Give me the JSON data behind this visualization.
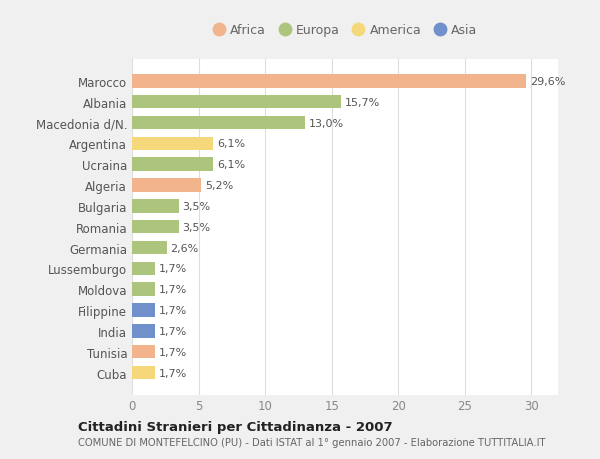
{
  "countries": [
    "Marocco",
    "Albania",
    "Macedonia d/N.",
    "Argentina",
    "Ucraina",
    "Algeria",
    "Bulgaria",
    "Romania",
    "Germania",
    "Lussemburgo",
    "Moldova",
    "Filippine",
    "India",
    "Tunisia",
    "Cuba"
  ],
  "values": [
    29.6,
    15.7,
    13.0,
    6.1,
    6.1,
    5.2,
    3.5,
    3.5,
    2.6,
    1.7,
    1.7,
    1.7,
    1.7,
    1.7,
    1.7
  ],
  "labels": [
    "29,6%",
    "15,7%",
    "13,0%",
    "6,1%",
    "6,1%",
    "5,2%",
    "3,5%",
    "3,5%",
    "2,6%",
    "1,7%",
    "1,7%",
    "1,7%",
    "1,7%",
    "1,7%",
    "1,7%"
  ],
  "colors": [
    "#f2b48c",
    "#adc47d",
    "#adc47d",
    "#f5d87a",
    "#adc47d",
    "#f2b48c",
    "#adc47d",
    "#adc47d",
    "#adc47d",
    "#adc47d",
    "#adc47d",
    "#7090cc",
    "#7090cc",
    "#f2b48c",
    "#f5d87a"
  ],
  "legend_labels": [
    "Africa",
    "Europa",
    "America",
    "Asia"
  ],
  "legend_colors": [
    "#f2b48c",
    "#adc47d",
    "#f5d87a",
    "#7090cc"
  ],
  "title_bold": "Cittadini Stranieri per Cittadinanza - 2007",
  "subtitle": "COMUNE DI MONTEFELCINO (PU) - Dati ISTAT al 1° gennaio 2007 - Elaborazione TUTTITALIA.IT",
  "xlim": [
    0,
    32
  ],
  "xticks": [
    0,
    5,
    10,
    15,
    20,
    25,
    30
  ],
  "bg_color": "#f0f0f0",
  "plot_bg_color": "#ffffff"
}
